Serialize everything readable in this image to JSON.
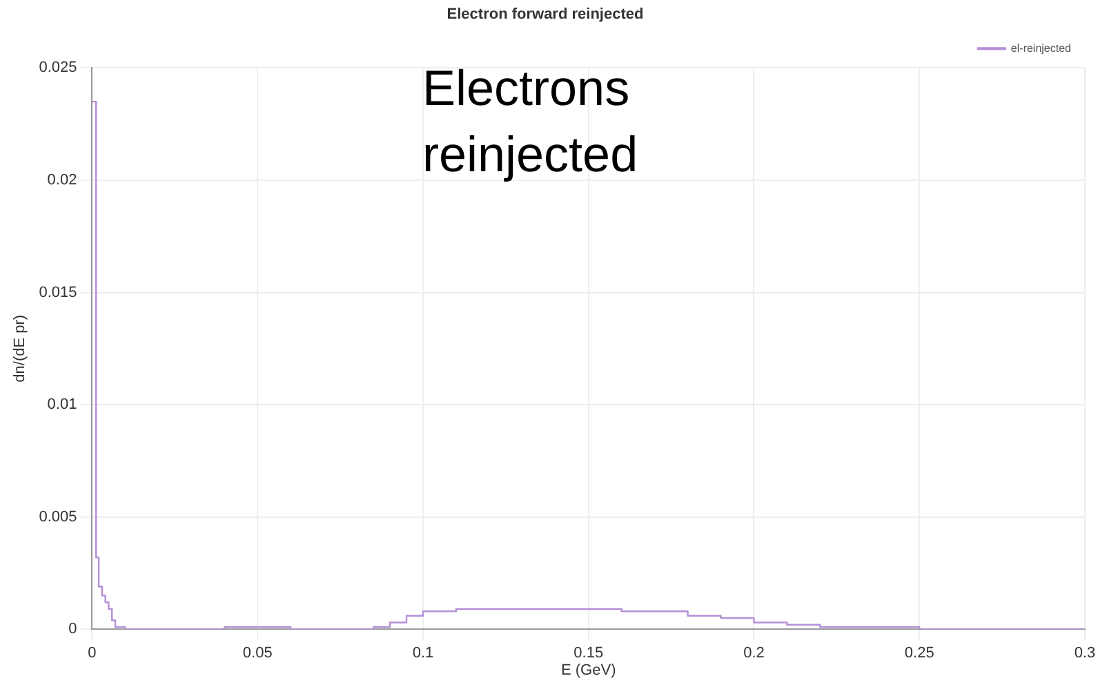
{
  "chart_data": {
    "type": "step",
    "title": "Electron forward reinjected",
    "xlabel": "E (GeV)",
    "ylabel": "dn/(dE pr)",
    "annotations": [
      "Electrons reinjected"
    ],
    "series": [
      {
        "name": "el-reinjected",
        "color": "#b48fd8",
        "x": [
          0,
          0.001,
          0.0012,
          0.002,
          0.003,
          0.004,
          0.005,
          0.006,
          0.007,
          0.01,
          0.02,
          0.03,
          0.04,
          0.05,
          0.06,
          0.07,
          0.08,
          0.085,
          0.09,
          0.095,
          0.1,
          0.105,
          0.11,
          0.12,
          0.13,
          0.14,
          0.15,
          0.16,
          0.17,
          0.18,
          0.19,
          0.2,
          0.21,
          0.22,
          0.23,
          0.25,
          0.27,
          0.3
        ],
        "values": [
          0.0235,
          0.0235,
          0.0032,
          0.0019,
          0.0015,
          0.0012,
          0.0009,
          0.0004,
          0.0001,
          0,
          0,
          0,
          0.0001,
          0.0001,
          0,
          0,
          0,
          0.0001,
          0.0003,
          0.0006,
          0.0008,
          0.0008,
          0.0009,
          0.0009,
          0.0009,
          0.0009,
          0.0009,
          0.0008,
          0.0008,
          0.0006,
          0.0005,
          0.0003,
          0.0002,
          0.0001,
          0.0001,
          0,
          0,
          0
        ]
      }
    ],
    "xlim": [
      0,
      0.3
    ],
    "xticks": [
      0,
      0.05,
      0.1,
      0.15,
      0.2,
      0.25,
      0.3
    ],
    "ylim": [
      0,
      0.025
    ],
    "yticks": [
      0,
      0.005,
      0.01,
      0.015,
      0.02,
      0.025
    ],
    "grid": true,
    "legend": "top right",
    "marker": "none",
    "line_style": "solid"
  }
}
